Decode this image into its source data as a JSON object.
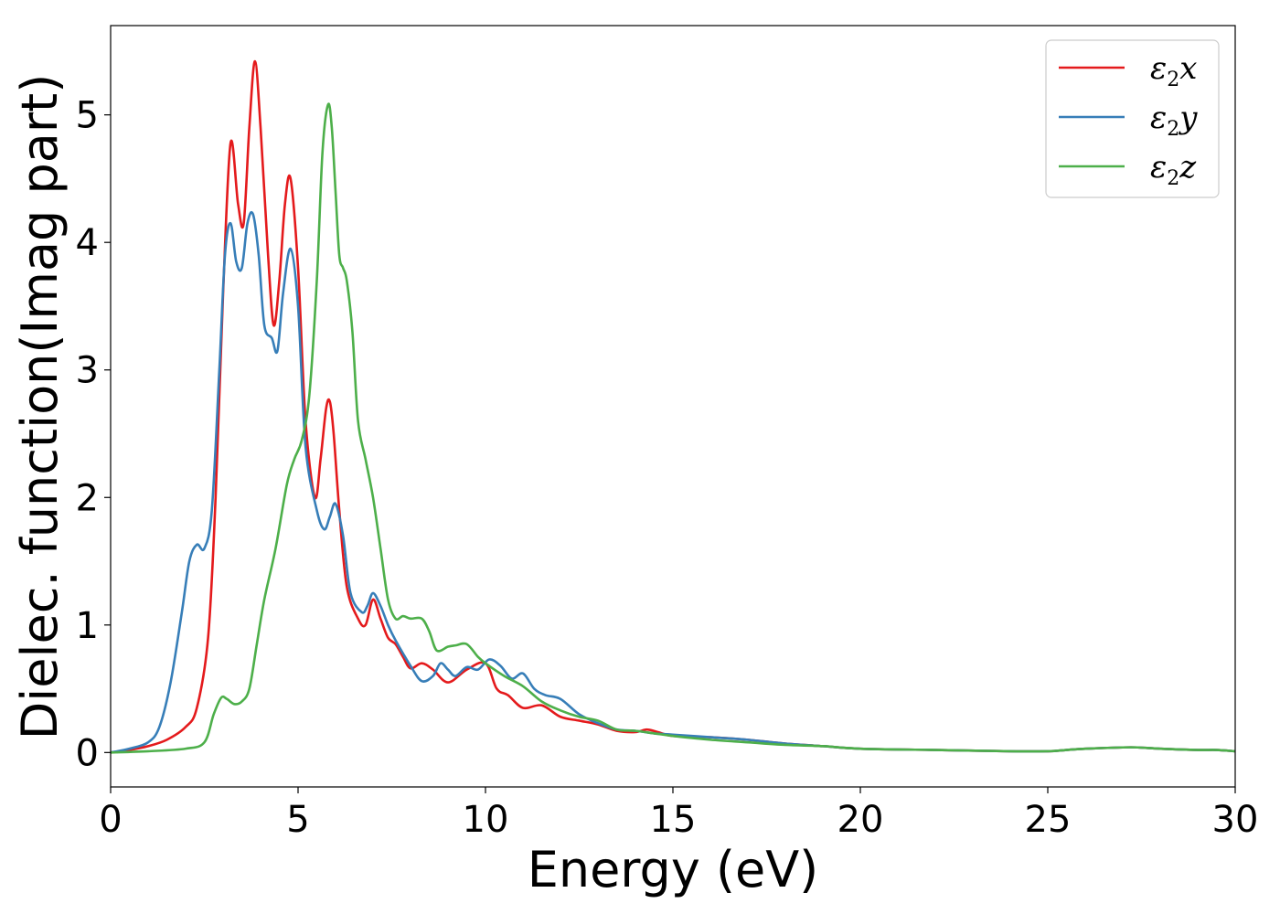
{
  "chart_data": {
    "type": "line",
    "xlabel": "Energy (eV)",
    "ylabel": "Dielec. function(Imag part)",
    "xlim": [
      0,
      30
    ],
    "ylim": [
      -0.27,
      5.7
    ],
    "xticks": [
      0,
      5,
      10,
      15,
      20,
      25,
      30
    ],
    "yticks": [
      0,
      1,
      2,
      3,
      4,
      5
    ],
    "grid": false,
    "legend_position": "top-right",
    "series": [
      {
        "name": "ε₂x",
        "legend_base": "ε",
        "legend_sub": "2",
        "legend_var": "x",
        "color": "#e41a1c",
        "x": [
          0,
          0.5,
          1.0,
          1.5,
          2.0,
          2.3,
          2.6,
          2.8,
          3.0,
          3.2,
          3.4,
          3.55,
          3.7,
          3.85,
          4.0,
          4.2,
          4.35,
          4.5,
          4.65,
          4.8,
          5.0,
          5.2,
          5.45,
          5.6,
          5.75,
          5.85,
          5.95,
          6.1,
          6.3,
          6.6,
          6.8,
          7.0,
          7.2,
          7.4,
          7.6,
          7.8,
          8.0,
          8.3,
          8.6,
          9.0,
          9.5,
          10.0,
          10.3,
          10.6,
          11.0,
          11.5,
          12.0,
          12.5,
          13.0,
          13.5,
          14.0,
          14.3,
          14.6,
          15.0,
          16.0,
          17.0,
          18.0,
          19.0,
          20.0,
          22.0,
          24.0,
          25.0,
          25.5,
          26.0,
          27.0,
          27.4,
          28.0,
          29.0,
          29.5,
          30.0
        ],
        "y": [
          0.0,
          0.02,
          0.05,
          0.1,
          0.2,
          0.35,
          0.9,
          2.0,
          3.6,
          4.78,
          4.3,
          4.15,
          4.9,
          5.42,
          4.9,
          3.9,
          3.35,
          3.7,
          4.3,
          4.5,
          3.8,
          2.6,
          2.0,
          2.3,
          2.7,
          2.75,
          2.5,
          1.9,
          1.3,
          1.05,
          1.0,
          1.2,
          1.05,
          0.9,
          0.85,
          0.75,
          0.66,
          0.7,
          0.65,
          0.55,
          0.65,
          0.7,
          0.5,
          0.45,
          0.35,
          0.37,
          0.28,
          0.25,
          0.22,
          0.17,
          0.16,
          0.18,
          0.16,
          0.13,
          0.12,
          0.1,
          0.07,
          0.05,
          0.03,
          0.02,
          0.01,
          0.01,
          0.02,
          0.03,
          0.04,
          0.04,
          0.03,
          0.02,
          0.02,
          0.01
        ]
      },
      {
        "name": "ε₂y",
        "legend_base": "ε",
        "legend_sub": "2",
        "legend_var": "y",
        "color": "#377eb8",
        "x": [
          0,
          0.5,
          1.0,
          1.3,
          1.6,
          1.9,
          2.1,
          2.3,
          2.5,
          2.7,
          2.9,
          3.05,
          3.2,
          3.35,
          3.5,
          3.65,
          3.8,
          3.95,
          4.1,
          4.3,
          4.45,
          4.6,
          4.8,
          5.0,
          5.2,
          5.5,
          5.7,
          5.85,
          6.0,
          6.2,
          6.4,
          6.7,
          6.85,
          7.0,
          7.2,
          7.4,
          7.6,
          8.0,
          8.3,
          8.6,
          8.8,
          9.0,
          9.2,
          9.5,
          9.8,
          10.1,
          10.4,
          10.7,
          11.0,
          11.3,
          11.6,
          12.0,
          12.5,
          13.0,
          13.5,
          14.0,
          14.5,
          15.0,
          16.0,
          17.0,
          18.0,
          19.0,
          20.0,
          22.0,
          24.0,
          25.0,
          25.5,
          26.0,
          27.0,
          27.4,
          28.0,
          29.0,
          29.5,
          30.0
        ],
        "y": [
          0.0,
          0.03,
          0.08,
          0.2,
          0.55,
          1.1,
          1.5,
          1.63,
          1.6,
          1.9,
          3.0,
          3.9,
          4.15,
          3.85,
          3.8,
          4.15,
          4.22,
          3.9,
          3.35,
          3.25,
          3.15,
          3.6,
          3.95,
          3.5,
          2.4,
          1.9,
          1.75,
          1.85,
          1.95,
          1.7,
          1.25,
          1.1,
          1.15,
          1.25,
          1.15,
          1.0,
          0.88,
          0.68,
          0.56,
          0.6,
          0.7,
          0.65,
          0.6,
          0.67,
          0.65,
          0.73,
          0.68,
          0.58,
          0.62,
          0.5,
          0.45,
          0.42,
          0.3,
          0.23,
          0.18,
          0.17,
          0.15,
          0.14,
          0.12,
          0.1,
          0.07,
          0.05,
          0.03,
          0.02,
          0.01,
          0.01,
          0.02,
          0.03,
          0.04,
          0.04,
          0.03,
          0.02,
          0.02,
          0.01
        ]
      },
      {
        "name": "ε₂z",
        "legend_base": "ε",
        "legend_sub": "2",
        "legend_var": "z",
        "color": "#4daf4a",
        "x": [
          0,
          1.0,
          2.0,
          2.5,
          2.75,
          2.95,
          3.1,
          3.3,
          3.5,
          3.7,
          3.9,
          4.1,
          4.4,
          4.7,
          4.9,
          5.1,
          5.3,
          5.5,
          5.65,
          5.8,
          5.9,
          6.0,
          6.1,
          6.2,
          6.3,
          6.45,
          6.6,
          6.8,
          7.0,
          7.2,
          7.4,
          7.6,
          7.8,
          8.0,
          8.3,
          8.5,
          8.7,
          9.0,
          9.2,
          9.5,
          9.8,
          10.0,
          10.5,
          11.0,
          11.5,
          12.0,
          12.5,
          13.0,
          13.5,
          14.0,
          14.5,
          15.0,
          16.0,
          17.0,
          18.0,
          19.0,
          20.0,
          22.0,
          24.0,
          25.0,
          25.5,
          26.0,
          27.0,
          27.4,
          28.0,
          29.0,
          29.5,
          30.0
        ],
        "y": [
          0.0,
          0.01,
          0.03,
          0.08,
          0.3,
          0.43,
          0.42,
          0.38,
          0.4,
          0.5,
          0.85,
          1.2,
          1.6,
          2.1,
          2.3,
          2.45,
          2.8,
          3.7,
          4.7,
          5.08,
          4.9,
          4.4,
          3.9,
          3.8,
          3.7,
          3.3,
          2.6,
          2.3,
          2.0,
          1.6,
          1.2,
          1.05,
          1.07,
          1.05,
          1.05,
          0.95,
          0.8,
          0.83,
          0.84,
          0.85,
          0.75,
          0.7,
          0.6,
          0.52,
          0.4,
          0.33,
          0.28,
          0.25,
          0.18,
          0.17,
          0.15,
          0.13,
          0.1,
          0.08,
          0.06,
          0.05,
          0.03,
          0.02,
          0.01,
          0.01,
          0.02,
          0.03,
          0.04,
          0.04,
          0.03,
          0.02,
          0.02,
          0.01
        ]
      }
    ]
  }
}
